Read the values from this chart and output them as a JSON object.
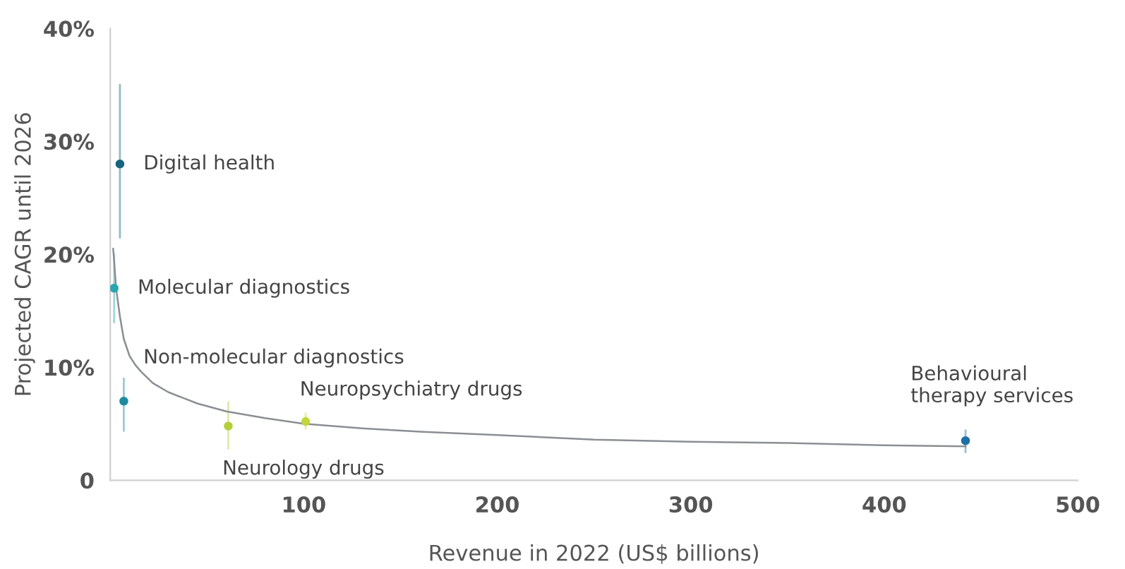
{
  "chart_data": {
    "type": "scatter",
    "xlabel": "Revenue in 2022 (US$ billions)",
    "ylabel": "Projected CAGR until 2026",
    "xlim": [
      0,
      500
    ],
    "xticks": [
      100,
      200,
      300,
      400,
      500
    ],
    "ylim": [
      0,
      40
    ],
    "yticks": [
      {
        "value": 0,
        "label": "0"
      },
      {
        "value": 10,
        "label": "10%"
      },
      {
        "value": 20,
        "label": "20%"
      },
      {
        "value": 30,
        "label": "30%"
      },
      {
        "value": 40,
        "label": "40%"
      }
    ],
    "grid": false,
    "series": [
      {
        "marker": "circle",
        "x": [
          5,
          2,
          7,
          61,
          101,
          442
        ],
        "values": [
          28,
          17,
          7,
          4.8,
          5.2,
          3.5
        ],
        "colors": [
          "#17657e",
          "#2aa5b0",
          "#1d8aa0",
          "#b3cf3a",
          "#c3d63e",
          "#1f6ea6"
        ],
        "errors": [
          [
            21.5,
            35
          ],
          [
            14,
            20
          ],
          [
            4.4,
            9
          ],
          [
            2.8,
            6.9
          ],
          [
            4.6,
            5.9
          ],
          [
            2.5,
            4.4
          ]
        ]
      },
      {
        "type": "line",
        "color": "#8a8f94",
        "line_style": "solid",
        "x": [
          1.5,
          2,
          3,
          5,
          7,
          10,
          13,
          16,
          22,
          30,
          45,
          60,
          80,
          100,
          130,
          160,
          200,
          250,
          300,
          350,
          400,
          442
        ],
        "values": [
          20.5,
          19.5,
          17,
          14.5,
          12.5,
          11,
          10.2,
          9.6,
          8.6,
          7.8,
          6.8,
          6.1,
          5.5,
          5.0,
          4.6,
          4.3,
          4.0,
          3.6,
          3.4,
          3.3,
          3.1,
          3.0
        ]
      }
    ],
    "annotations": [
      {
        "text": "Digital health",
        "x": 5,
        "y": 28
      },
      {
        "text": "Molecular diagnostics",
        "x": 2,
        "y": 17
      },
      {
        "text": "Non-molecular diagnostics",
        "x": 7,
        "y": 7
      },
      {
        "text": "Neurology drugs",
        "x": 61,
        "y": 4.8
      },
      {
        "text": "Neuropsychiatry drugs",
        "x": 101,
        "y": 5.2
      },
      {
        "text": "Behavioural\ntherapy services",
        "x": 442,
        "y": 3.5
      }
    ]
  }
}
